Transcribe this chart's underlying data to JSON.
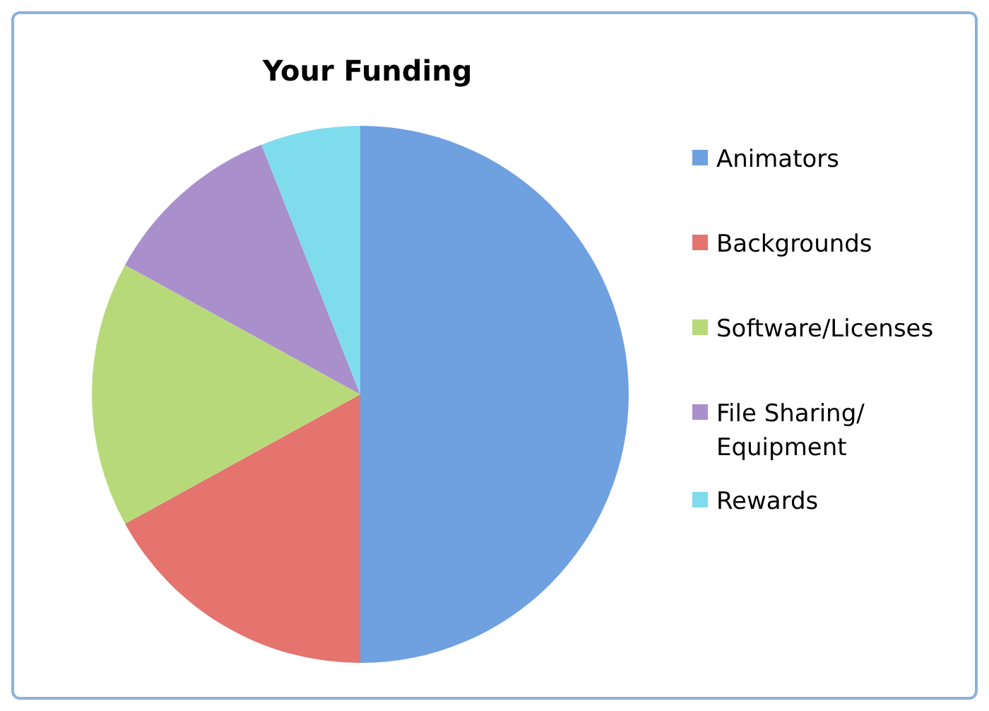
{
  "chart_data": {
    "type": "pie",
    "title": "Your Funding",
    "categories": [
      "Animators",
      "Backgrounds",
      "Software/Licenses",
      "File Sharing/ Equipment",
      "Rewards"
    ],
    "values": [
      50,
      17,
      16,
      11,
      6
    ],
    "colors": [
      "#6fa0e0",
      "#e5736e",
      "#b8d97a",
      "#a98fcc",
      "#7fdcec"
    ],
    "legend": "right"
  }
}
